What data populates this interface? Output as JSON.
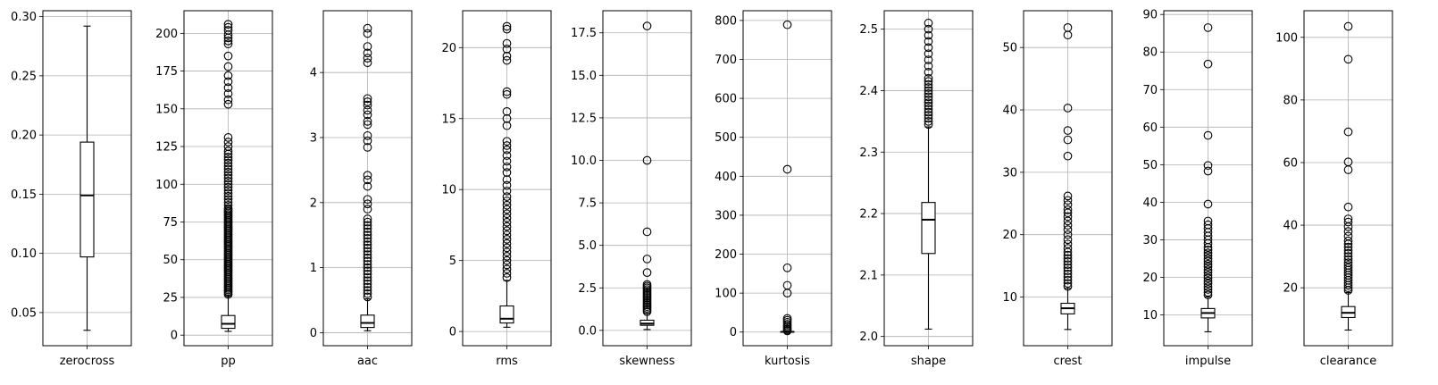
{
  "chart_data": [
    {
      "type": "box",
      "xlabel": "zerocross",
      "ylim": [
        0.022,
        0.305
      ],
      "yticks": [
        0.05,
        0.1,
        0.15,
        0.2,
        0.25,
        0.3
      ],
      "ytick_labels": [
        "0.05",
        "0.10",
        "0.15",
        "0.20",
        "0.25",
        "0.30"
      ],
      "grid": true,
      "box": {
        "whisker_low": 0.035,
        "q1": 0.097,
        "median": 0.149,
        "q3": 0.194,
        "whisker_high": 0.292
      },
      "outliers": []
    },
    {
      "type": "box",
      "xlabel": "pp",
      "ylim": [
        -7,
        215
      ],
      "yticks": [
        0,
        25,
        50,
        75,
        100,
        125,
        150,
        175,
        200
      ],
      "ytick_labels": [
        "0",
        "25",
        "50",
        "75",
        "100",
        "125",
        "150",
        "175",
        "200"
      ],
      "grid": true,
      "box": {
        "whisker_low": 2.5,
        "q1": 4.5,
        "median": 7.5,
        "q3": 13,
        "whisker_high": 26
      },
      "outliers": [
        27,
        28,
        29,
        30,
        31,
        32,
        33,
        34,
        35,
        36,
        37,
        38,
        39,
        40,
        41,
        42,
        43,
        44,
        45,
        46,
        47,
        48,
        49,
        50,
        51,
        52,
        53,
        54,
        55,
        56,
        57,
        58,
        59,
        60,
        61,
        62,
        63,
        64,
        65,
        66,
        67,
        68,
        69,
        70,
        71,
        72,
        73,
        74,
        75,
        76,
        77,
        78,
        79,
        80,
        81,
        82,
        83,
        84,
        86,
        88,
        90,
        92,
        94,
        96,
        98,
        100,
        102,
        104,
        106,
        108,
        110,
        112,
        114,
        116,
        118,
        120,
        122,
        125,
        128,
        131,
        153,
        156,
        160,
        164,
        168,
        172,
        178,
        185,
        193,
        195,
        197,
        199,
        202,
        204,
        206
      ]
    },
    {
      "type": "box",
      "xlabel": "aac",
      "ylim": [
        -0.2,
        4.95
      ],
      "yticks": [
        0,
        1,
        2,
        3,
        4
      ],
      "ytick_labels": [
        "0",
        "1",
        "2",
        "3",
        "4"
      ],
      "grid": true,
      "box": {
        "whisker_low": 0.03,
        "q1": 0.08,
        "median": 0.15,
        "q3": 0.27,
        "whisker_high": 0.52
      },
      "outliers": [
        0.55,
        0.6,
        0.65,
        0.7,
        0.75,
        0.8,
        0.85,
        0.9,
        0.95,
        1.0,
        1.05,
        1.1,
        1.15,
        1.2,
        1.25,
        1.3,
        1.35,
        1.4,
        1.45,
        1.5,
        1.55,
        1.6,
        1.65,
        1.7,
        1.75,
        1.9,
        1.98,
        2.05,
        2.25,
        2.35,
        2.42,
        2.85,
        2.95,
        3.03,
        3.2,
        3.25,
        3.35,
        3.42,
        3.5,
        3.55,
        3.6,
        4.15,
        4.22,
        4.3,
        4.4,
        4.6,
        4.68
      ]
    },
    {
      "type": "box",
      "xlabel": "rms",
      "ylim": [
        -1,
        22.6
      ],
      "yticks": [
        0,
        5,
        10,
        15,
        20
      ],
      "ytick_labels": [
        "0",
        "5",
        "10",
        "15",
        "20"
      ],
      "grid": true,
      "box": {
        "whisker_low": 0.3,
        "q1": 0.6,
        "median": 0.9,
        "q3": 1.8,
        "whisker_high": 3.6
      },
      "outliers": [
        3.8,
        4.1,
        4.4,
        4.7,
        5.0,
        5.3,
        5.6,
        5.9,
        6.2,
        6.5,
        6.8,
        7.1,
        7.4,
        7.7,
        8.0,
        8.3,
        8.6,
        8.9,
        9.2,
        9.5,
        9.9,
        10.3,
        10.7,
        11.2,
        11.6,
        12.0,
        12.4,
        12.8,
        13.1,
        13.4,
        14.5,
        15.0,
        15.5,
        16.7,
        16.9,
        19.1,
        19.4,
        19.9,
        20.3,
        21.3,
        21.5
      ]
    },
    {
      "type": "box",
      "xlabel": "skewness",
      "ylim": [
        -0.9,
        18.8
      ],
      "yticks": [
        0.0,
        2.5,
        5.0,
        7.5,
        10.0,
        12.5,
        15.0,
        17.5
      ],
      "ytick_labels": [
        "0.0",
        "2.5",
        "5.0",
        "7.5",
        "10.0",
        "12.5",
        "15.0",
        "17.5"
      ],
      "grid": true,
      "box": {
        "whisker_low": 0.05,
        "q1": 0.3,
        "median": 0.4,
        "q3": 0.6,
        "whisker_high": 1.0
      },
      "outliers": [
        1.1,
        1.2,
        1.3,
        1.4,
        1.5,
        1.6,
        1.7,
        1.8,
        1.9,
        2.0,
        2.1,
        2.2,
        2.3,
        2.4,
        2.5,
        2.6,
        2.7,
        3.4,
        4.2,
        5.8,
        10.0,
        17.9
      ]
    },
    {
      "type": "box",
      "xlabel": "kurtosis",
      "ylim": [
        -35,
        825
      ],
      "yticks": [
        0,
        100,
        200,
        300,
        400,
        500,
        600,
        700,
        800
      ],
      "ytick_labels": [
        "0",
        "100",
        "200",
        "300",
        "400",
        "500",
        "600",
        "700",
        "800"
      ],
      "grid": true,
      "box": {
        "whisker_low": -1,
        "q1": 0,
        "median": 0.5,
        "q3": 1,
        "whisker_high": 2
      },
      "outliers": [
        3,
        5,
        8,
        12,
        16,
        20,
        25,
        30,
        35,
        100,
        120,
        165,
        418,
        789
      ]
    },
    {
      "type": "box",
      "xlabel": "shape",
      "ylim": [
        1.985,
        2.53
      ],
      "yticks": [
        2.0,
        2.1,
        2.2,
        2.3,
        2.4,
        2.5
      ],
      "ytick_labels": [
        "2.0",
        "2.1",
        "2.2",
        "2.3",
        "2.4",
        "2.5"
      ],
      "grid": true,
      "box": {
        "whisker_low": 2.012,
        "q1": 2.135,
        "median": 2.19,
        "q3": 2.218,
        "whisker_high": 2.341
      },
      "outliers": [
        2.345,
        2.35,
        2.355,
        2.36,
        2.365,
        2.37,
        2.375,
        2.38,
        2.385,
        2.39,
        2.395,
        2.4,
        2.405,
        2.41,
        2.415,
        2.42,
        2.43,
        2.44,
        2.45,
        2.46,
        2.47,
        2.48,
        2.49,
        2.5,
        2.51
      ]
    },
    {
      "type": "box",
      "xlabel": "crest",
      "ylim": [
        2.2,
        55.9
      ],
      "yticks": [
        10,
        20,
        30,
        40,
        50
      ],
      "ytick_labels": [
        "10",
        "20",
        "30",
        "40",
        "50"
      ],
      "grid": true,
      "box": {
        "whisker_low": 4.8,
        "q1": 7.3,
        "median": 8.2,
        "q3": 9.0,
        "whisker_high": 11.4
      },
      "outliers": [
        11.7,
        12.2,
        12.7,
        13.2,
        13.7,
        14.2,
        14.7,
        15.2,
        15.7,
        16.2,
        16.7,
        17.2,
        17.8,
        18.5,
        19.2,
        20.0,
        20.8,
        21.5,
        22.2,
        22.9,
        23.5,
        24.0,
        24.8,
        25.5,
        26.2,
        32.6,
        35.2,
        36.7,
        40.3,
        52.0,
        53.2
      ]
    },
    {
      "type": "box",
      "xlabel": "impulse",
      "ylim": [
        1.8,
        91
      ],
      "yticks": [
        10,
        20,
        30,
        40,
        50,
        60,
        70,
        80,
        90
      ],
      "ytick_labels": [
        "10",
        "20",
        "30",
        "40",
        "50",
        "60",
        "70",
        "80",
        "90"
      ],
      "grid": true,
      "box": {
        "whisker_low": 5.5,
        "q1": 9.2,
        "median": 10.5,
        "q3": 11.7,
        "whisker_high": 14.8
      },
      "outliers": [
        15.3,
        16.0,
        16.8,
        17.5,
        18.3,
        19.0,
        19.8,
        20.5,
        21.3,
        22.0,
        22.8,
        23.5,
        24.3,
        25.0,
        25.8,
        26.5,
        27.3,
        28.0,
        29.0,
        30.0,
        31.0,
        32.0,
        33.0,
        34.0,
        35.0,
        39.5,
        48.3,
        49.8,
        57.8,
        76.8,
        86.5
      ]
    },
    {
      "type": "box",
      "xlabel": "clearance",
      "ylim": [
        1.5,
        108.5
      ],
      "yticks": [
        20,
        40,
        60,
        80,
        100
      ],
      "ytick_labels": [
        "20",
        "40",
        "60",
        "80",
        "100"
      ],
      "grid": true,
      "box": {
        "whisker_low": 6.5,
        "q1": 10.5,
        "median": 12.0,
        "q3": 14.0,
        "whisker_high": 18.5
      },
      "outliers": [
        19.2,
        20.0,
        20.8,
        21.6,
        22.4,
        23.2,
        24.0,
        24.8,
        25.6,
        26.4,
        27.2,
        28.0,
        29.0,
        30.0,
        31.0,
        32.0,
        33.0,
        34.0,
        35.0,
        36.5,
        38.0,
        39.5,
        41.0,
        42.0,
        45.8,
        57.7,
        60.2,
        69.8,
        93.0,
        103.5
      ]
    }
  ]
}
